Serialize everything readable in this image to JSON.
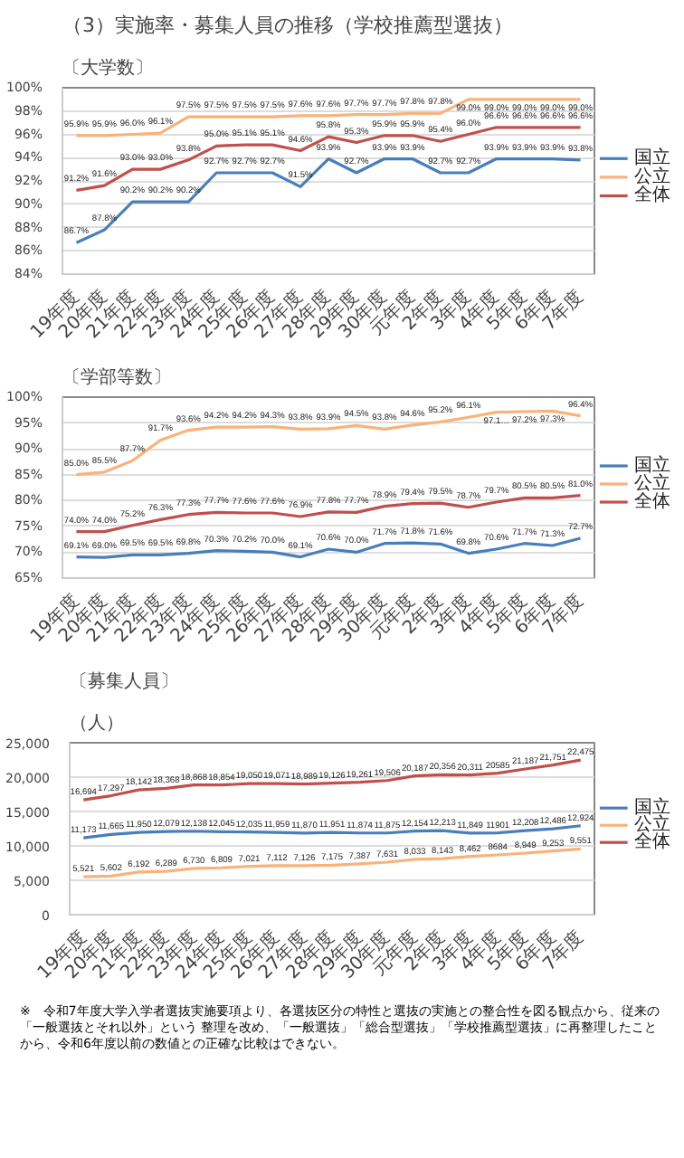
{
  "chart_data": [
    {
      "type": "line",
      "title": "（3）実施率・募集人員の推移（学校推薦型選抜）",
      "subtitle": "〔大学数〕",
      "categories": [
        "19年度",
        "20年度",
        "21年度",
        "22年度",
        "23年度",
        "24年度",
        "25年度",
        "26年度",
        "27年度",
        "28年度",
        "29年度",
        "30年度",
        "元年度",
        "2年度",
        "3年度",
        "4年度",
        "5年度",
        "6年度",
        "7年度"
      ],
      "ylim": [
        84,
        100
      ],
      "yticks": [
        {
          "value": 84,
          "label": "84%"
        },
        {
          "value": 86,
          "label": "86%"
        },
        {
          "value": 88,
          "label": "88%"
        },
        {
          "value": 90,
          "label": "90%"
        },
        {
          "value": 92,
          "label": "92%"
        },
        {
          "value": 94,
          "label": "94%"
        },
        {
          "value": 96,
          "label": "96%"
        },
        {
          "value": 98,
          "label": "98%"
        },
        {
          "value": 100,
          "label": "100%"
        }
      ],
      "grid": "y",
      "legend": "right",
      "marker": "none",
      "line_style": "solid",
      "series": [
        {
          "name": "国立",
          "color": "#4a7ebb",
          "values": [
            86.7,
            87.8,
            90.2,
            90.2,
            90.2,
            92.7,
            92.7,
            92.7,
            91.5,
            93.9,
            92.7,
            93.9,
            93.9,
            92.7,
            92.7,
            93.9,
            93.9,
            93.9,
            93.8
          ],
          "value_labels": [
            "86.7%",
            "87.8%",
            "90.2%",
            "90.2%",
            "90.2%",
            "92.7%",
            "92.7%",
            "92.7%",
            "91.5%",
            "93.9%",
            "92.7%",
            "93.9%",
            "93.9%",
            "92.7%",
            "92.7%",
            "93.9%",
            "93.9%",
            "93.9%",
            "93.8%"
          ]
        },
        {
          "name": "公立",
          "color": "#f9b27a",
          "values": [
            95.9,
            95.9,
            96.0,
            96.1,
            97.5,
            97.5,
            97.5,
            97.5,
            97.6,
            97.6,
            97.7,
            97.7,
            97.8,
            97.8,
            99.0,
            99.0,
            99.0,
            99.0,
            99.0
          ],
          "value_labels": [
            "95.9%",
            "95.9%",
            "96.0%",
            "96.1%",
            "97.5%",
            "97.5%",
            "97.5%",
            "97.5%",
            "97.6%",
            "97.6%",
            "97.7%",
            "97.7%",
            "97.8%",
            "97.8%",
            "99.0%",
            "99.0%",
            "99.0%",
            "99.0%",
            "99.0%"
          ]
        },
        {
          "name": "全体",
          "color": "#c0504d",
          "values": [
            91.2,
            91.6,
            93.0,
            93.0,
            93.8,
            95.0,
            95.1,
            95.1,
            94.6,
            95.8,
            95.3,
            95.9,
            95.9,
            95.4,
            96.0,
            96.6,
            96.6,
            96.6,
            96.6
          ],
          "value_labels": [
            "91.2%",
            "91.6%",
            "93.0%",
            "93.0%",
            "93.8%",
            "95.0%",
            "95.1%",
            "95.1%",
            "94.6%",
            "95.8%",
            "95.3%",
            "95.9%",
            "95.9%",
            "95.4%",
            "96.0%",
            "96.6%",
            "96.6%",
            "96.6%",
            "96.6%"
          ]
        }
      ]
    },
    {
      "type": "line",
      "title": "〔学部等数〕",
      "categories": [
        "19年度",
        "20年度",
        "21年度",
        "22年度",
        "23年度",
        "24年度",
        "25年度",
        "26年度",
        "27年度",
        "28年度",
        "29年度",
        "30年度",
        "元年度",
        "2年度",
        "3年度",
        "4年度",
        "5年度",
        "6年度",
        "7年度"
      ],
      "ylim": [
        65,
        100
      ],
      "yticks": [
        {
          "value": 65,
          "label": "65%"
        },
        {
          "value": 70,
          "label": "70%"
        },
        {
          "value": 75,
          "label": "75%"
        },
        {
          "value": 80,
          "label": "80%"
        },
        {
          "value": 85,
          "label": "85%"
        },
        {
          "value": 90,
          "label": "90%"
        },
        {
          "value": 95,
          "label": "95%"
        },
        {
          "value": 100,
          "label": "100%"
        }
      ],
      "grid": "y",
      "legend": "right",
      "marker": "none",
      "line_style": "solid",
      "series": [
        {
          "name": "国立",
          "color": "#4a7ebb",
          "values": [
            69.1,
            69.0,
            69.5,
            69.5,
            69.8,
            70.3,
            70.2,
            70.0,
            69.1,
            70.6,
            70.0,
            71.7,
            71.8,
            71.6,
            69.8,
            70.6,
            71.7,
            71.3,
            72.7
          ],
          "value_labels": [
            "69.1%",
            "69.0%",
            "69.5%",
            "69.5%",
            "69.8%",
            "70.3%",
            "70.2%",
            "70.0%",
            "69.1%",
            "70.6%",
            "70.0%",
            "71.7%",
            "71.8%",
            "71.6%",
            "69.8%",
            "70.6%",
            "71.7%",
            "71.3%",
            "72.7%"
          ]
        },
        {
          "name": "公立",
          "color": "#f9b27a",
          "values": [
            85.0,
            85.5,
            87.7,
            91.7,
            93.6,
            94.2,
            94.2,
            94.3,
            93.8,
            93.9,
            94.5,
            93.8,
            94.6,
            95.2,
            96.1,
            97.1,
            97.2,
            97.3,
            96.4
          ],
          "value_labels": [
            "85.0%",
            "85.5%",
            "87.7%",
            "91.7%",
            "93.6%",
            "94.2%",
            "94.2%",
            "94.3%",
            "93.8%",
            "93.9%",
            "94.5%",
            "93.8%",
            "94.6%",
            "95.2%",
            "96.1%",
            "97.1…",
            "97.2%",
            "97.3%",
            "96.4%"
          ]
        },
        {
          "name": "全体",
          "color": "#c0504d",
          "values": [
            74.0,
            74.0,
            75.2,
            76.3,
            77.3,
            77.7,
            77.6,
            77.6,
            76.9,
            77.8,
            77.7,
            78.9,
            79.4,
            79.5,
            78.7,
            79.7,
            80.5,
            80.5,
            81.0
          ],
          "value_labels": [
            "74.0%",
            "74.0%",
            "75.2%",
            "76.3%",
            "77.3%",
            "77.7%",
            "77.6%",
            "77.6%",
            "76.9%",
            "77.8%",
            "77.7%",
            "78.9%",
            "79.4%",
            "79.5%",
            "78.7%",
            "79.7%",
            "80.5%",
            "80.5%",
            "81.0%"
          ]
        }
      ]
    },
    {
      "type": "line",
      "title": "〔募集人員〕",
      "ylabel": "（人）",
      "categories": [
        "19年度",
        "20年度",
        "21年度",
        "22年度",
        "23年度",
        "24年度",
        "25年度",
        "26年度",
        "27年度",
        "28年度",
        "29年度",
        "30年度",
        "元年度",
        "2年度",
        "3年度",
        "4年度",
        "5年度",
        "6年度",
        "7年度"
      ],
      "ylim": [
        0,
        25000
      ],
      "yticks": [
        0,
        {
          "value": 5000,
          "label": "5,000"
        },
        {
          "value": 10000,
          "label": "10,000"
        },
        {
          "value": 15000,
          "label": "15,000"
        },
        {
          "value": 20000,
          "label": "20,000"
        },
        {
          "value": 25000,
          "label": "25,000"
        }
      ],
      "grid": "y",
      "legend": "right",
      "marker": "none",
      "line_style": "solid",
      "series": [
        {
          "name": "国立",
          "color": "#4a7ebb",
          "values": [
            11173,
            11665,
            11950,
            12079,
            12138,
            12045,
            12035,
            11959,
            11870,
            11951,
            11874,
            11875,
            12154,
            12213,
            11849,
            11901,
            12208,
            12486,
            12924
          ],
          "value_labels": [
            "11,173",
            "11,665",
            "11,950",
            "12,079",
            "12,138",
            "12,045",
            "12,035",
            "11,959",
            "11,870",
            "11,951",
            "11,874",
            "11,875",
            "12,154",
            "12,213",
            "11,849",
            "11901",
            "12,208",
            "12,486",
            "12,924"
          ]
        },
        {
          "name": "公立",
          "color": "#f9b27a",
          "values": [
            5521,
            5602,
            6192,
            6289,
            6730,
            6809,
            7021,
            7112,
            7126,
            7175,
            7387,
            7631,
            8033,
            8143,
            8462,
            8684,
            8949,
            9253,
            9551
          ],
          "value_labels": [
            "5,521",
            "5,602",
            "6,192",
            "6,289",
            "6,730",
            "6,809",
            "7,021",
            "7,112",
            "7,126",
            "7,175",
            "7,387",
            "7,631",
            "8,033",
            "8,143",
            "8,462",
            "8684",
            "8,949",
            "9,253",
            "9,551"
          ]
        },
        {
          "name": "全体",
          "color": "#c0504d",
          "values": [
            16694,
            17297,
            18142,
            18368,
            18868,
            18854,
            19050,
            19071,
            18989,
            19126,
            19261,
            19506,
            20187,
            20356,
            20311,
            20585,
            21187,
            21751,
            22475
          ],
          "value_labels": [
            "16,694",
            "17,297",
            "18,142",
            "18,368",
            "18,868",
            "18,854",
            "19,050",
            "19,071",
            "18,989",
            "19,126",
            "19,261",
            "19,506",
            "20,187",
            "20,356",
            "20,311",
            "20585",
            "21,187",
            "21,751",
            "22,475"
          ]
        }
      ],
      "annotations": [
        "※　令和7年度大学入学者選抜実施要項より、各選抜区分の特性と選抜の実施との整合性を図る観点から、従来の「一般選抜とそれ以外」という 整理を改め、「一般選抜」「総合型選抜」「学校推薦型選抜」に再整理したことから、令和6年度以前の数値との正確な比較はできない。"
      ]
    }
  ]
}
